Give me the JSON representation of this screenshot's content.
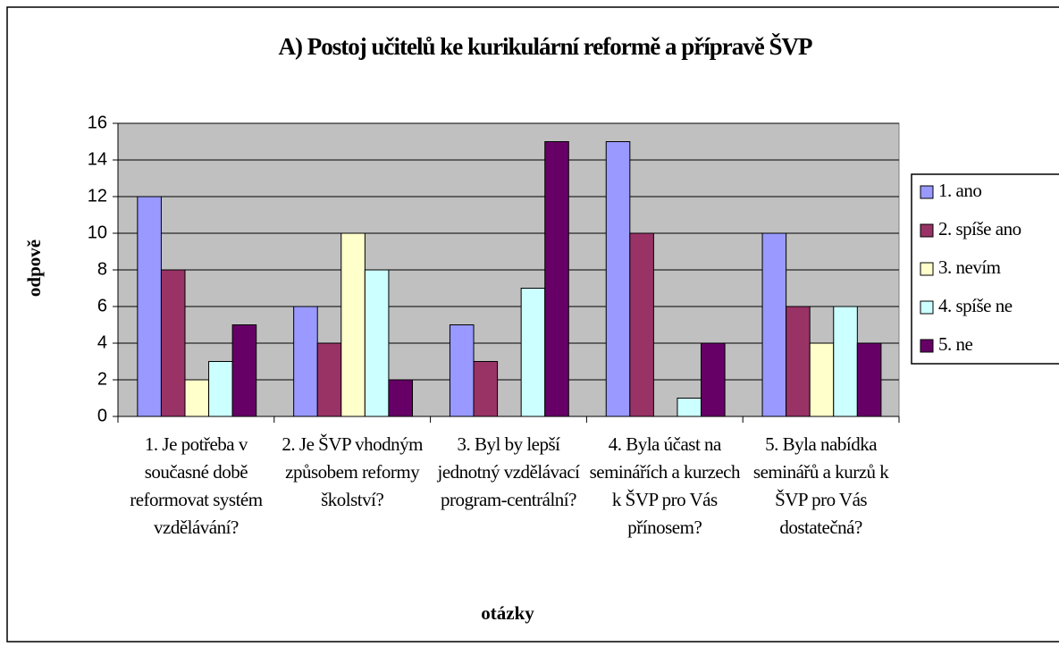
{
  "chart_data": {
    "type": "bar",
    "title": "A) Postoj učitelů ke kurikulární reformě a přípravě ŠVP",
    "ylabel": "odpově",
    "xlabel": "otázky",
    "categories": [
      "1. Je potřeba v současné době reformovat systém vzdělávání?",
      "2. Je ŠVP vhodným způsobem reformy školství?",
      "3. Byl by lepší jednotný vzdělávací program-centrální?",
      "4. Byla účast na seminářích a kurzech k ŠVP pro Vás přínosem?",
      "5. Byla nabídka seminářů a kurzů k ŠVP pro Vás dostatečná?"
    ],
    "series": [
      {
        "name": "1. ano",
        "color": "#9999ff",
        "values": [
          12,
          6,
          5,
          15,
          10
        ]
      },
      {
        "name": "2. spíše ano",
        "color": "#993366",
        "values": [
          8,
          4,
          3,
          10,
          6
        ]
      },
      {
        "name": "3. nevím",
        "color": "#ffffcc",
        "values": [
          2,
          10,
          0,
          0,
          4
        ]
      },
      {
        "name": "4. spíše ne",
        "color": "#ccffff",
        "values": [
          3,
          8,
          7,
          1,
          6
        ]
      },
      {
        "name": "5. ne",
        "color": "#660066",
        "values": [
          5,
          2,
          15,
          4,
          4
        ]
      }
    ],
    "ylim": [
      0,
      16
    ],
    "yticks": [
      0,
      2,
      4,
      6,
      8,
      10,
      12,
      14,
      16
    ],
    "grid": true,
    "legend": "right"
  }
}
